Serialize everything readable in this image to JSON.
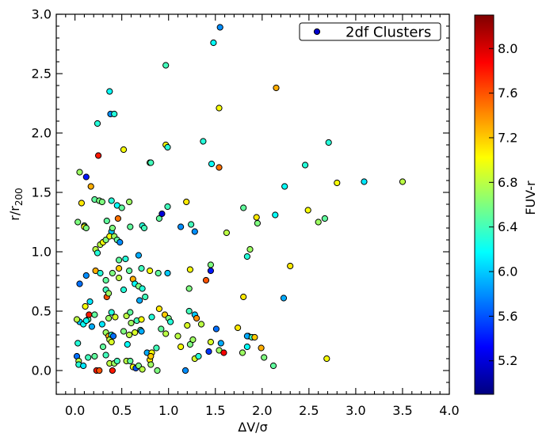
{
  "chart_data": {
    "type": "scatter",
    "xlabel": "ΔV/σ",
    "ylabel": "r/r",
    "ylabel_sub": "200",
    "xlim": [
      -0.2,
      4.0
    ],
    "ylim": [
      -0.2,
      3.0
    ],
    "xticks": [
      "0.0",
      "0.5",
      "1.0",
      "1.5",
      "2.0",
      "2.5",
      "3.0",
      "3.5",
      "4.0"
    ],
    "yticks": [
      "0.0",
      "0.5",
      "1.0",
      "1.5",
      "2.0",
      "2.5",
      "3.0"
    ],
    "grid": false,
    "legend": {
      "position": "top-right",
      "label": "2df Clusters",
      "marker_color": "#0000cc"
    },
    "colorbar": {
      "label": "FUV-r",
      "range": [
        4.9,
        8.3
      ],
      "ticks": [
        "5.2",
        "5.6",
        "6.0",
        "6.4",
        "6.8",
        "7.2",
        "7.6",
        "8.0"
      ],
      "colormap": "jet"
    },
    "points": [
      [
        1.55,
        2.89,
        5.8
      ],
      [
        1.48,
        2.76,
        6.2
      ],
      [
        0.97,
        2.57,
        6.4
      ],
      [
        0.37,
        2.35,
        6.2
      ],
      [
        0.38,
        2.16,
        5.8
      ],
      [
        0.42,
        2.16,
        6.3
      ],
      [
        0.24,
        2.08,
        6.3
      ],
      [
        2.15,
        2.38,
        7.3
      ],
      [
        1.54,
        2.21,
        7.0
      ],
      [
        0.25,
        1.81,
        7.8
      ],
      [
        0.52,
        1.86,
        7.0
      ],
      [
        0.97,
        1.9,
        7.0
      ],
      [
        0.99,
        1.88,
        6.3
      ],
      [
        1.37,
        1.93,
        6.3
      ],
      [
        2.71,
        1.92,
        6.3
      ],
      [
        0.8,
        1.75,
        6.8
      ],
      [
        0.81,
        1.75,
        6.4
      ],
      [
        1.46,
        1.74,
        6.2
      ],
      [
        1.54,
        1.71,
        7.5
      ],
      [
        2.46,
        1.73,
        6.3
      ],
      [
        0.05,
        1.67,
        6.7
      ],
      [
        0.12,
        1.63,
        5.4
      ],
      [
        0.17,
        1.55,
        7.3
      ],
      [
        2.24,
        1.55,
        6.2
      ],
      [
        2.8,
        1.58,
        7.0
      ],
      [
        3.09,
        1.59,
        6.1
      ],
      [
        3.5,
        1.59,
        6.8
      ],
      [
        0.07,
        1.41,
        7.1
      ],
      [
        0.21,
        1.44,
        6.5
      ],
      [
        0.26,
        1.43,
        6.6
      ],
      [
        0.29,
        1.42,
        6.6
      ],
      [
        0.39,
        1.43,
        6.3
      ],
      [
        0.45,
        1.39,
        6.2
      ],
      [
        0.5,
        1.37,
        6.5
      ],
      [
        0.58,
        1.42,
        6.7
      ],
      [
        0.99,
        1.38,
        6.4
      ],
      [
        1.19,
        1.42,
        7.1
      ],
      [
        1.8,
        1.37,
        6.5
      ],
      [
        2.14,
        1.31,
        6.2
      ],
      [
        2.49,
        1.35,
        7.0
      ],
      [
        2.67,
        1.28,
        6.5
      ],
      [
        0.03,
        1.25,
        6.6
      ],
      [
        0.1,
        1.22,
        6.5
      ],
      [
        0.1,
        1.21,
        7.0
      ],
      [
        0.12,
        1.2,
        6.6
      ],
      [
        0.34,
        1.26,
        6.5
      ],
      [
        0.39,
        1.17,
        6.0
      ],
      [
        0.4,
        1.2,
        6.6
      ],
      [
        0.46,
        1.28,
        7.5
      ],
      [
        0.59,
        1.21,
        6.5
      ],
      [
        0.72,
        1.22,
        6.3
      ],
      [
        0.74,
        1.2,
        6.4
      ],
      [
        0.9,
        1.28,
        6.5
      ],
      [
        0.93,
        1.32,
        5.2
      ],
      [
        1.13,
        1.21,
        5.8
      ],
      [
        1.24,
        1.23,
        6.4
      ],
      [
        1.28,
        1.17,
        5.8
      ],
      [
        1.62,
        1.16,
        6.8
      ],
      [
        1.94,
        1.29,
        7.1
      ],
      [
        1.95,
        1.24,
        6.6
      ],
      [
        2.6,
        1.25,
        6.7
      ],
      [
        0.22,
        1.02,
        6.8
      ],
      [
        0.24,
        0.99,
        6.3
      ],
      [
        0.27,
        1.06,
        6.8
      ],
      [
        0.3,
        1.08,
        7.0
      ],
      [
        0.33,
        1.1,
        6.6
      ],
      [
        0.37,
        1.13,
        7.0
      ],
      [
        0.42,
        1.13,
        6.7
      ],
      [
        0.45,
        1.1,
        6.5
      ],
      [
        0.48,
        1.08,
        5.8
      ],
      [
        0.68,
        0.97,
        5.9
      ],
      [
        0.47,
        0.93,
        6.5
      ],
      [
        0.54,
        0.94,
        6.3
      ],
      [
        1.45,
        0.89,
        6.6
      ],
      [
        1.84,
        0.96,
        6.3
      ],
      [
        1.87,
        1.02,
        6.7
      ],
      [
        0.05,
        0.73,
        5.7
      ],
      [
        0.12,
        0.8,
        5.8
      ],
      [
        0.22,
        0.84,
        7.3
      ],
      [
        0.27,
        0.82,
        6.3
      ],
      [
        0.33,
        0.76,
        6.5
      ],
      [
        0.4,
        0.82,
        6.6
      ],
      [
        0.47,
        0.86,
        7.2
      ],
      [
        0.47,
        0.78,
        6.8
      ],
      [
        0.58,
        0.84,
        6.5
      ],
      [
        0.62,
        0.77,
        7.3
      ],
      [
        0.64,
        0.73,
        6.2
      ],
      [
        0.68,
        0.71,
        6.6
      ],
      [
        0.71,
        0.86,
        6.4
      ],
      [
        0.72,
        0.69,
        6.3
      ],
      [
        0.8,
        0.84,
        7.0
      ],
      [
        0.89,
        0.82,
        6.5
      ],
      [
        0.99,
        0.82,
        6.0
      ],
      [
        1.22,
        0.69,
        6.6
      ],
      [
        1.23,
        0.85,
        7.0
      ],
      [
        1.4,
        0.76,
        7.6
      ],
      [
        1.45,
        0.84,
        5.4
      ],
      [
        2.3,
        0.88,
        7.1
      ],
      [
        0.33,
        0.68,
        6.4
      ],
      [
        0.34,
        0.62,
        7.6
      ],
      [
        0.36,
        0.65,
        6.7
      ],
      [
        0.52,
        0.68,
        6.3
      ],
      [
        0.69,
        0.59,
        5.9
      ],
      [
        0.75,
        0.62,
        6.4
      ],
      [
        1.8,
        0.62,
        7.1
      ],
      [
        2.23,
        0.61,
        5.9
      ],
      [
        0.11,
        0.54,
        7.0
      ],
      [
        0.16,
        0.58,
        6.1
      ],
      [
        0.05,
        0.41,
        6.0
      ],
      [
        0.09,
        0.39,
        6.2
      ],
      [
        0.14,
        0.43,
        6.5
      ],
      [
        0.15,
        0.47,
        7.8
      ],
      [
        0.21,
        0.47,
        6.5
      ],
      [
        0.36,
        0.44,
        6.7
      ],
      [
        0.39,
        0.49,
        6.3
      ],
      [
        0.43,
        0.45,
        6.9
      ],
      [
        0.55,
        0.46,
        6.8
      ],
      [
        0.59,
        0.49,
        6.5
      ],
      [
        0.6,
        0.4,
        6.7
      ],
      [
        0.66,
        0.42,
        6.4
      ],
      [
        0.71,
        0.43,
        7.0
      ],
      [
        0.82,
        0.45,
        6.3
      ],
      [
        0.9,
        0.52,
        7.1
      ],
      [
        0.96,
        0.47,
        7.2
      ],
      [
        1.0,
        0.44,
        6.6
      ],
      [
        1.22,
        0.5,
        6.4
      ],
      [
        1.28,
        0.47,
        6.0
      ],
      [
        1.3,
        0.44,
        7.4
      ],
      [
        0.02,
        0.43,
        6.8
      ],
      [
        0.12,
        0.42,
        6.2
      ],
      [
        0.18,
        0.37,
        5.9
      ],
      [
        0.29,
        0.39,
        6.1
      ],
      [
        0.33,
        0.32,
        6.7
      ],
      [
        0.36,
        0.29,
        7.3
      ],
      [
        0.37,
        0.26,
        6.8
      ],
      [
        0.39,
        0.3,
        6.3
      ],
      [
        0.41,
        0.29,
        5.7
      ],
      [
        0.52,
        0.33,
        6.6
      ],
      [
        0.58,
        0.3,
        6.8
      ],
      [
        0.64,
        0.32,
        6.9
      ],
      [
        0.7,
        0.34,
        6.5
      ],
      [
        0.71,
        0.33,
        5.9
      ],
      [
        0.92,
        0.35,
        6.5
      ],
      [
        0.97,
        0.31,
        6.8
      ],
      [
        1.02,
        0.41,
        6.3
      ],
      [
        1.1,
        0.29,
        6.8
      ],
      [
        1.2,
        0.38,
        6.9
      ],
      [
        1.35,
        0.39,
        6.8
      ],
      [
        1.51,
        0.35,
        5.7
      ],
      [
        1.74,
        0.36,
        7.1
      ],
      [
        1.85,
        0.29,
        6.5
      ],
      [
        1.84,
        0.29,
        5.9
      ],
      [
        1.89,
        0.28,
        6.4
      ],
      [
        1.92,
        0.28,
        7.2
      ],
      [
        0.03,
        0.23,
        6.3
      ],
      [
        0.3,
        0.2,
        6.5
      ],
      [
        0.39,
        0.24,
        6.9
      ],
      [
        0.56,
        0.22,
        6.2
      ],
      [
        0.77,
        0.15,
        5.9
      ],
      [
        0.82,
        0.15,
        7.0
      ],
      [
        0.87,
        0.19,
        6.4
      ],
      [
        1.13,
        0.2,
        7.0
      ],
      [
        1.23,
        0.22,
        6.6
      ],
      [
        1.26,
        0.26,
        6.7
      ],
      [
        1.43,
        0.16,
        5.5
      ],
      [
        1.45,
        0.24,
        6.9
      ],
      [
        1.54,
        0.17,
        6.7
      ],
      [
        1.56,
        0.23,
        5.9
      ],
      [
        1.59,
        0.15,
        7.9
      ],
      [
        1.79,
        0.15,
        6.7
      ],
      [
        1.84,
        0.2,
        6.2
      ],
      [
        1.99,
        0.19,
        7.3
      ],
      [
        2.02,
        0.11,
        6.6
      ],
      [
        0.02,
        0.12,
        5.7
      ],
      [
        0.04,
        0.08,
        6.8
      ],
      [
        0.04,
        0.05,
        6.3
      ],
      [
        0.09,
        0.04,
        6.1
      ],
      [
        0.14,
        0.11,
        6.4
      ],
      [
        0.21,
        0.12,
        6.5
      ],
      [
        0.23,
        0.0,
        7.8
      ],
      [
        0.26,
        0.0,
        7.6
      ],
      [
        0.33,
        0.13,
        6.4
      ],
      [
        0.37,
        0.06,
        6.8
      ],
      [
        0.4,
        0.0,
        7.8
      ],
      [
        0.42,
        0.06,
        6.7
      ],
      [
        0.45,
        0.08,
        6.4
      ],
      [
        0.55,
        0.08,
        6.8
      ],
      [
        0.59,
        0.08,
        6.5
      ],
      [
        0.62,
        0.03,
        7.0
      ],
      [
        0.65,
        0.02,
        5.6
      ],
      [
        0.68,
        0.04,
        6.6
      ],
      [
        0.72,
        0.01,
        6.8
      ],
      [
        0.8,
        0.09,
        7.1
      ],
      [
        0.81,
        0.12,
        7.2
      ],
      [
        0.81,
        0.05,
        6.7
      ],
      [
        0.88,
        0.0,
        6.6
      ],
      [
        1.18,
        0.0,
        5.8
      ],
      [
        1.28,
        0.1,
        6.9
      ],
      [
        1.32,
        0.12,
        6.3
      ],
      [
        2.12,
        0.04,
        6.5
      ],
      [
        2.69,
        0.1,
        7.0
      ]
    ]
  }
}
